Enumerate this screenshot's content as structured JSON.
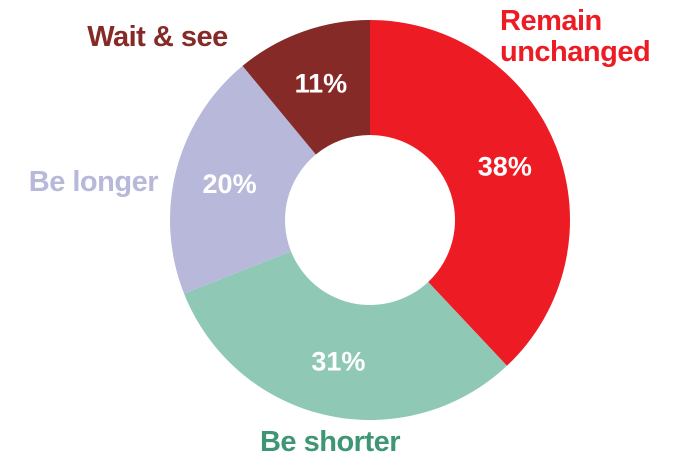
{
  "chart_data": {
    "type": "donut",
    "categories": [
      "Remain unchanged",
      "Be shorter",
      "Be longer",
      "Wait & see"
    ],
    "values": [
      38,
      31,
      20,
      11
    ],
    "value_labels": [
      "38%",
      "31%",
      "20%",
      "11%"
    ],
    "colors": [
      "#ed1c24",
      "#8fc8b5",
      "#b8b9da",
      "#862a27"
    ],
    "label_colors": [
      "#ed1c24",
      "#3f9675",
      "#b8b9da",
      "#862a27"
    ]
  }
}
